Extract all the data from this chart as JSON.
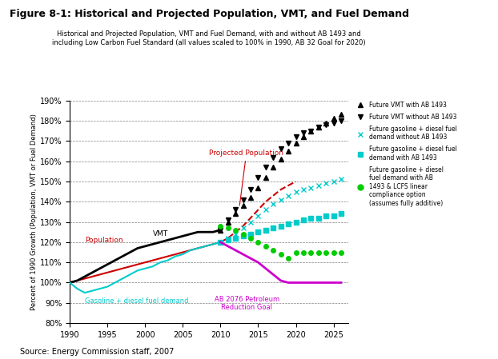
{
  "title": "Figure 8-1: Historical and Projected Population, VMT, and Fuel Demand",
  "subtitle": "Historical and Projected Population, VMT and Fuel Demand, with and without AB 1493 and\nincluding Low Carbon Fuel Standard (all values scaled to 100% in 1990, AB 32 Goal for 2020)",
  "ylabel": "Percent of 1990 Growth (Population, VMT or Fuel Demand)",
  "source": "Source: Energy Commission staff, 2007",
  "xlim": [
    1990,
    2027
  ],
  "ylim": [
    80,
    190
  ],
  "yticks": [
    80,
    90,
    100,
    110,
    120,
    130,
    140,
    150,
    160,
    170,
    180,
    190
  ],
  "xticks": [
    1990,
    1995,
    2000,
    2005,
    2010,
    2015,
    2020,
    2025
  ],
  "population_hist": {
    "x": [
      1990,
      1991,
      1992,
      1993,
      1994,
      1995,
      1996,
      1997,
      1998,
      1999,
      2000,
      2001,
      2002,
      2003,
      2004,
      2005,
      2006,
      2007,
      2008,
      2009,
      2010
    ],
    "y": [
      100,
      101,
      102,
      103,
      104,
      105,
      106,
      107,
      108,
      109,
      110,
      111,
      112,
      113,
      114,
      115,
      116,
      117,
      118,
      119,
      120
    ],
    "color": "#cc0000",
    "lw": 1.5
  },
  "population_proj": {
    "x": [
      2010,
      2011,
      2012,
      2013,
      2014,
      2015,
      2016,
      2017,
      2018,
      2019,
      2020
    ],
    "y": [
      120,
      122,
      125,
      128,
      132,
      136,
      140,
      143,
      146,
      148,
      150
    ],
    "color": "#cc0000",
    "lw": 1.5,
    "linestyle": "--"
  },
  "vmt_hist": {
    "x": [
      1990,
      1991,
      1992,
      1993,
      1994,
      1995,
      1996,
      1997,
      1998,
      1999,
      2000,
      2001,
      2002,
      2003,
      2004,
      2005,
      2006,
      2007,
      2008,
      2009,
      2010
    ],
    "y": [
      100,
      101,
      103,
      105,
      107,
      109,
      111,
      113,
      115,
      117,
      118,
      119,
      120,
      121,
      122,
      123,
      124,
      125,
      125,
      125,
      126
    ],
    "color": "#000000",
    "lw": 2.0
  },
  "gasoline_hist": {
    "x": [
      1990,
      1991,
      1992,
      1993,
      1994,
      1995,
      1996,
      1997,
      1998,
      1999,
      2000,
      2001,
      2002,
      2003,
      2004,
      2005,
      2006,
      2007,
      2008,
      2009,
      2010
    ],
    "y": [
      100,
      97,
      95,
      96,
      97,
      98,
      100,
      102,
      104,
      106,
      107,
      108,
      110,
      111,
      113,
      114,
      116,
      117,
      118,
      119,
      120
    ],
    "color": "#00cccc",
    "lw": 1.5
  },
  "future_vmt_with": {
    "x": [
      2010,
      2011,
      2012,
      2013,
      2014,
      2015,
      2016,
      2017,
      2018,
      2019,
      2020,
      2021,
      2022,
      2023,
      2024,
      2025,
      2026
    ],
    "y": [
      126,
      130,
      134,
      138,
      142,
      147,
      152,
      157,
      161,
      165,
      169,
      172,
      175,
      177,
      179,
      181,
      183
    ],
    "color": "#000000",
    "marker": "^",
    "ms": 4
  },
  "future_vmt_without": {
    "x": [
      2010,
      2011,
      2012,
      2013,
      2014,
      2015,
      2016,
      2017,
      2018,
      2019,
      2020,
      2021,
      2022,
      2023,
      2024,
      2025,
      2026
    ],
    "y": [
      126,
      131,
      136,
      141,
      146,
      152,
      157,
      162,
      166,
      169,
      172,
      174,
      175,
      177,
      178,
      179,
      180
    ],
    "color": "#000000",
    "marker": "v",
    "ms": 4
  },
  "future_gas_without": {
    "x": [
      2010,
      2011,
      2012,
      2013,
      2014,
      2015,
      2016,
      2017,
      2018,
      2019,
      2020,
      2021,
      2022,
      2023,
      2024,
      2025,
      2026
    ],
    "y": [
      120,
      122,
      124,
      127,
      130,
      133,
      136,
      139,
      141,
      143,
      145,
      146,
      147,
      148,
      149,
      150,
      151
    ],
    "color": "#00cccc",
    "marker": "x",
    "ms": 5
  },
  "future_gas_with": {
    "x": [
      2010,
      2011,
      2012,
      2013,
      2014,
      2015,
      2016,
      2017,
      2018,
      2019,
      2020,
      2021,
      2022,
      2023,
      2024,
      2025,
      2026
    ],
    "y": [
      120,
      121,
      122,
      123,
      124,
      125,
      126,
      127,
      128,
      129,
      130,
      131,
      132,
      132,
      133,
      133,
      134
    ],
    "color": "#00cccc",
    "marker": "s",
    "ms": 4
  },
  "future_gas_lcfs": {
    "x": [
      2010,
      2011,
      2012,
      2013,
      2014,
      2015,
      2016,
      2017,
      2018,
      2019,
      2020,
      2021,
      2022,
      2023,
      2024,
      2025,
      2026
    ],
    "y": [
      128,
      127,
      126,
      124,
      122,
      120,
      118,
      116,
      114,
      112,
      115,
      115,
      115,
      115,
      115,
      115,
      115
    ],
    "color": "#00cc00",
    "marker": "o",
    "ms": 4
  },
  "ab2076": {
    "x": [
      2010,
      2012,
      2015,
      2017,
      2018,
      2019,
      2020,
      2021,
      2022,
      2023,
      2024,
      2025,
      2026
    ],
    "y": [
      120,
      116,
      110,
      104,
      101,
      100,
      100,
      100,
      100,
      100,
      100,
      100,
      100
    ],
    "color": "#cc00cc",
    "lw": 2.0
  },
  "legend_entries": [
    {
      "marker": "^",
      "color": "#000000",
      "label": "Future VMT with AB 1493"
    },
    {
      "marker": "v",
      "color": "#000000",
      "label": "Future VMT without AB 1493"
    },
    {
      "marker": "x",
      "color": "#00cccc",
      "label": "Future gasoline + diesel fuel\ndemand without AB 1493"
    },
    {
      "marker": "s",
      "color": "#00cccc",
      "label": "Future gasoline + diesel fuel\ndemand with AB 1493"
    },
    {
      "marker": "o",
      "color": "#00cc00",
      "label": "Future gasoline + diesel\nfuel demand with AB\n1493 & LCFS linear\ncompliance option\n(assumes fully additive)"
    }
  ]
}
